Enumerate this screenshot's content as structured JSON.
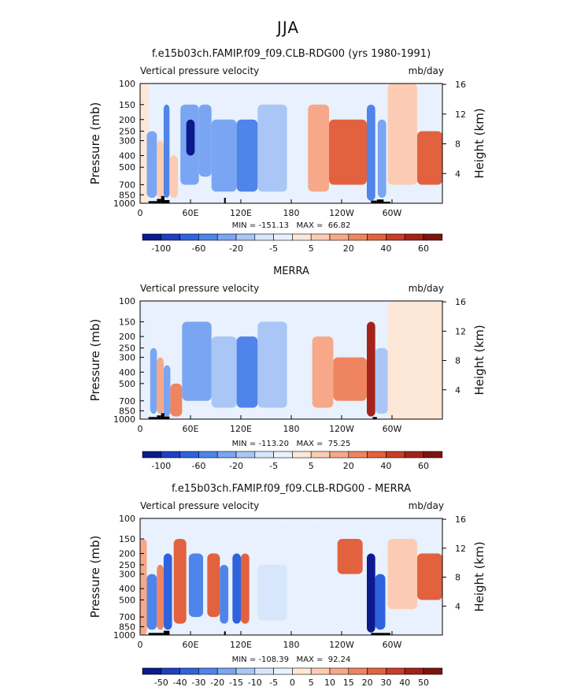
{
  "figure_title": "JJA",
  "chart_data": [
    {
      "type": "heatmap",
      "title": "f.e15b03ch.FAMIP.f09_f09.CLB-RDG00 (yrs 1980-1991)",
      "subtitle_left": "Vertical pressure velocity",
      "subtitle_right": "mb/day",
      "ylabel": "Pressure (mb)",
      "ylabel_right": "Height (km)",
      "x_ticks": [
        "0",
        "60E",
        "120E",
        "180",
        "120W",
        "60W"
      ],
      "x_tick_lons": [
        0,
        60,
        120,
        180,
        240,
        300
      ],
      "xlim": [
        0,
        360
      ],
      "y_ticks": [
        "100",
        "150",
        "200",
        "250",
        "300",
        "400",
        "500",
        "700",
        "850",
        "1000"
      ],
      "y_tick_values": [
        100,
        150,
        200,
        250,
        300,
        400,
        500,
        700,
        850,
        1000
      ],
      "ylim": [
        1000,
        100
      ],
      "y_scale": "log",
      "height_ticks": [
        "16",
        "12",
        "8",
        "4"
      ],
      "height_tick_km": [
        16,
        12,
        8,
        4
      ],
      "stats_text": "MIN = -151.13   MAX =  66.82",
      "colorbar_labels": [
        "-100",
        "-60",
        "-20",
        "-5",
        "5",
        "20",
        "40",
        "60"
      ],
      "colorbar_label_positions": [
        1,
        3,
        5,
        7,
        9,
        11,
        13,
        15
      ],
      "colorbar_colors": [
        "#0b1a8c",
        "#1f3fc0",
        "#2f63dd",
        "#4f84ea",
        "#7aa5f2",
        "#a9c6f6",
        "#d7e6fb",
        "#e8f1fd",
        "#fde7d7",
        "#fbccb3",
        "#f6a888",
        "#ef8560",
        "#e2623f",
        "#c93d26",
        "#a3231a",
        "#7d1410"
      ],
      "cells": [
        {
          "lon": [
            0,
            10
          ],
          "p": [
            100,
            1000
          ],
          "value": 3
        },
        {
          "lon": [
            8,
            20
          ],
          "p": [
            250,
            900
          ],
          "value": -28
        },
        {
          "lon": [
            20,
            28
          ],
          "p": [
            300,
            900
          ],
          "value": 8
        },
        {
          "lon": [
            28,
            35
          ],
          "p": [
            150,
            900
          ],
          "value": -45
        },
        {
          "lon": [
            35,
            45
          ],
          "p": [
            400,
            900
          ],
          "value": 5
        },
        {
          "lon": [
            48,
            70
          ],
          "p": [
            150,
            700
          ],
          "value": -35
        },
        {
          "lon": [
            55,
            65
          ],
          "p": [
            200,
            400
          ],
          "value": -110
        },
        {
          "lon": [
            70,
            85
          ],
          "p": [
            150,
            600
          ],
          "value": -25
        },
        {
          "lon": [
            85,
            115
          ],
          "p": [
            200,
            800
          ],
          "value": -30
        },
        {
          "lon": [
            115,
            140
          ],
          "p": [
            200,
            800
          ],
          "value": -55
        },
        {
          "lon": [
            140,
            175
          ],
          "p": [
            150,
            800
          ],
          "value": -20
        },
        {
          "lon": [
            175,
            200
          ],
          "p": [
            100,
            1000
          ],
          "value": -4
        },
        {
          "lon": [
            200,
            225
          ],
          "p": [
            150,
            800
          ],
          "value": 12
        },
        {
          "lon": [
            225,
            270
          ],
          "p": [
            200,
            700
          ],
          "value": 30
        },
        {
          "lon": [
            270,
            280
          ],
          "p": [
            150,
            950
          ],
          "value": -60
        },
        {
          "lon": [
            283,
            293
          ],
          "p": [
            200,
            900
          ],
          "value": -35
        },
        {
          "lon": [
            295,
            330
          ],
          "p": [
            100,
            700
          ],
          "value": 8
        },
        {
          "lon": [
            330,
            360
          ],
          "p": [
            250,
            700
          ],
          "value": 30
        }
      ],
      "topography": [
        {
          "lon": [
            10,
            20
          ],
          "p_top": 960
        },
        {
          "lon": [
            20,
            25
          ],
          "p_top": 920
        },
        {
          "lon": [
            25,
            29
          ],
          "p_top": 870
        },
        {
          "lon": [
            29,
            35
          ],
          "p_top": 940
        },
        {
          "lon": [
            100,
            102
          ],
          "p_top": 900
        },
        {
          "lon": [
            275,
            282
          ],
          "p_top": 950
        },
        {
          "lon": [
            282,
            290
          ],
          "p_top": 930
        },
        {
          "lon": [
            290,
            298
          ],
          "p_top": 970
        }
      ]
    },
    {
      "type": "heatmap",
      "title": "MERRA",
      "subtitle_left": "Vertical pressure velocity",
      "subtitle_right": "mb/day",
      "ylabel": "Pressure (mb)",
      "ylabel_right": "Height (km)",
      "x_ticks": [
        "0",
        "60E",
        "120E",
        "180",
        "120W",
        "60W"
      ],
      "x_tick_lons": [
        0,
        60,
        120,
        180,
        240,
        300
      ],
      "xlim": [
        0,
        360
      ],
      "y_ticks": [
        "100",
        "150",
        "200",
        "250",
        "300",
        "400",
        "500",
        "700",
        "850",
        "1000"
      ],
      "y_tick_values": [
        100,
        150,
        200,
        250,
        300,
        400,
        500,
        700,
        850,
        1000
      ],
      "ylim": [
        1000,
        100
      ],
      "y_scale": "log",
      "height_ticks": [
        "16",
        "12",
        "8",
        "4"
      ],
      "height_tick_km": [
        16,
        12,
        8,
        4
      ],
      "stats_text": "MIN = -113.20   MAX =  75.25",
      "colorbar_labels": [
        "-100",
        "-60",
        "-20",
        "-5",
        "5",
        "20",
        "40",
        "60"
      ],
      "colorbar_label_positions": [
        1,
        3,
        5,
        7,
        9,
        11,
        13,
        15
      ],
      "colorbar_colors": [
        "#0b1a8c",
        "#1f3fc0",
        "#2f63dd",
        "#4f84ea",
        "#7aa5f2",
        "#a9c6f6",
        "#d7e6fb",
        "#e8f1fd",
        "#fde7d7",
        "#fbccb3",
        "#f6a888",
        "#ef8560",
        "#e2623f",
        "#c93d26",
        "#a3231a",
        "#7d1410"
      ],
      "cells": [
        {
          "lon": [
            0,
            10
          ],
          "p": [
            100,
            1000
          ],
          "value": -4
        },
        {
          "lon": [
            12,
            20
          ],
          "p": [
            250,
            900
          ],
          "value": -25
        },
        {
          "lon": [
            20,
            28
          ],
          "p": [
            300,
            900
          ],
          "value": 10
        },
        {
          "lon": [
            28,
            36
          ],
          "p": [
            350,
            950
          ],
          "value": -30
        },
        {
          "lon": [
            36,
            50
          ],
          "p": [
            500,
            950
          ],
          "value": 25
        },
        {
          "lon": [
            50,
            85
          ],
          "p": [
            150,
            700
          ],
          "value": -40
        },
        {
          "lon": [
            85,
            115
          ],
          "p": [
            200,
            800
          ],
          "value": -20
        },
        {
          "lon": [
            115,
            140
          ],
          "p": [
            200,
            800
          ],
          "value": -50
        },
        {
          "lon": [
            140,
            175
          ],
          "p": [
            150,
            800
          ],
          "value": -15
        },
        {
          "lon": [
            175,
            205
          ],
          "p": [
            100,
            1000
          ],
          "value": -4
        },
        {
          "lon": [
            205,
            230
          ],
          "p": [
            200,
            800
          ],
          "value": 12
        },
        {
          "lon": [
            230,
            270
          ],
          "p": [
            300,
            700
          ],
          "value": 25
        },
        {
          "lon": [
            270,
            280
          ],
          "p": [
            150,
            950
          ],
          "value": 55
        },
        {
          "lon": [
            280,
            295
          ],
          "p": [
            250,
            900
          ],
          "value": -20
        },
        {
          "lon": [
            295,
            360
          ],
          "p": [
            100,
            1000
          ],
          "value": 3
        }
      ],
      "topography": [
        {
          "lon": [
            10,
            20
          ],
          "p_top": 960
        },
        {
          "lon": [
            20,
            25
          ],
          "p_top": 930
        },
        {
          "lon": [
            25,
            29
          ],
          "p_top": 890
        },
        {
          "lon": [
            29,
            35
          ],
          "p_top": 950
        },
        {
          "lon": [
            277,
            282
          ],
          "p_top": 960
        }
      ]
    },
    {
      "type": "heatmap",
      "title": "f.e15b03ch.FAMIP.f09_f09.CLB-RDG00 - MERRA",
      "subtitle_left": "Vertical pressure velocity",
      "subtitle_right": "mb/day",
      "ylabel": "Pressure (mb)",
      "ylabel_right": "Height (km)",
      "x_ticks": [
        "0",
        "60E",
        "120E",
        "180",
        "120W",
        "60W"
      ],
      "x_tick_lons": [
        0,
        60,
        120,
        180,
        240,
        300
      ],
      "xlim": [
        0,
        360
      ],
      "y_ticks": [
        "100",
        "150",
        "200",
        "250",
        "300",
        "400",
        "500",
        "700",
        "850",
        "1000"
      ],
      "y_tick_values": [
        100,
        150,
        200,
        250,
        300,
        400,
        500,
        700,
        850,
        1000
      ],
      "ylim": [
        1000,
        100
      ],
      "y_scale": "log",
      "height_ticks": [
        "16",
        "12",
        "8",
        "4"
      ],
      "height_tick_km": [
        16,
        12,
        8,
        4
      ],
      "stats_text": "MIN = -108.39   MAX =  92.24",
      "colorbar_labels": [
        "-50",
        "-40",
        "-30",
        "-20",
        "-15",
        "-10",
        "-5",
        "0",
        "5",
        "10",
        "15",
        "20",
        "30",
        "40",
        "50"
      ],
      "colorbar_label_positions": [
        1,
        2,
        3,
        4,
        5,
        6,
        7,
        8,
        9,
        10,
        11,
        12,
        13,
        14,
        15
      ],
      "colorbar_colors": [
        "#0b1a8c",
        "#1f3fc0",
        "#2f63dd",
        "#4f84ea",
        "#7aa5f2",
        "#a9c6f6",
        "#d7e6fb",
        "#e8f1fd",
        "#fde7d7",
        "#fbccb3",
        "#f6a888",
        "#ef8560",
        "#e2623f",
        "#c93d26",
        "#a3231a",
        "#7d1410"
      ],
      "cells": [
        {
          "lon": [
            0,
            8
          ],
          "p": [
            150,
            1000
          ],
          "value": 12
        },
        {
          "lon": [
            8,
            20
          ],
          "p": [
            300,
            900
          ],
          "value": -25
        },
        {
          "lon": [
            20,
            28
          ],
          "p": [
            250,
            900
          ],
          "value": 15
        },
        {
          "lon": [
            28,
            38
          ],
          "p": [
            200,
            900
          ],
          "value": -35
        },
        {
          "lon": [
            40,
            55
          ],
          "p": [
            150,
            800
          ],
          "value": 25
        },
        {
          "lon": [
            58,
            75
          ],
          "p": [
            200,
            700
          ],
          "value": -25
        },
        {
          "lon": [
            80,
            95
          ],
          "p": [
            200,
            700
          ],
          "value": 20
        },
        {
          "lon": [
            95,
            105
          ],
          "p": [
            250,
            800
          ],
          "value": -30
        },
        {
          "lon": [
            110,
            120
          ],
          "p": [
            200,
            800
          ],
          "value": -40
        },
        {
          "lon": [
            120,
            130
          ],
          "p": [
            200,
            800
          ],
          "value": 20
        },
        {
          "lon": [
            140,
            175
          ],
          "p": [
            250,
            750
          ],
          "value": -10
        },
        {
          "lon": [
            175,
            205
          ],
          "p": [
            100,
            1000
          ],
          "value": -4
        },
        {
          "lon": [
            235,
            265
          ],
          "p": [
            150,
            300
          ],
          "value": 22
        },
        {
          "lon": [
            270,
            280
          ],
          "p": [
            200,
            950
          ],
          "value": -55
        },
        {
          "lon": [
            280,
            292
          ],
          "p": [
            300,
            900
          ],
          "value": -35
        },
        {
          "lon": [
            295,
            330
          ],
          "p": [
            150,
            600
          ],
          "value": 8
        },
        {
          "lon": [
            330,
            360
          ],
          "p": [
            200,
            500
          ],
          "value": 28
        }
      ],
      "topography": [
        {
          "lon": [
            10,
            28
          ],
          "p_top": 960
        },
        {
          "lon": [
            28,
            35
          ],
          "p_top": 920
        },
        {
          "lon": [
            100,
            102
          ],
          "p_top": 930
        },
        {
          "lon": [
            275,
            298
          ],
          "p_top": 960
        }
      ]
    }
  ]
}
